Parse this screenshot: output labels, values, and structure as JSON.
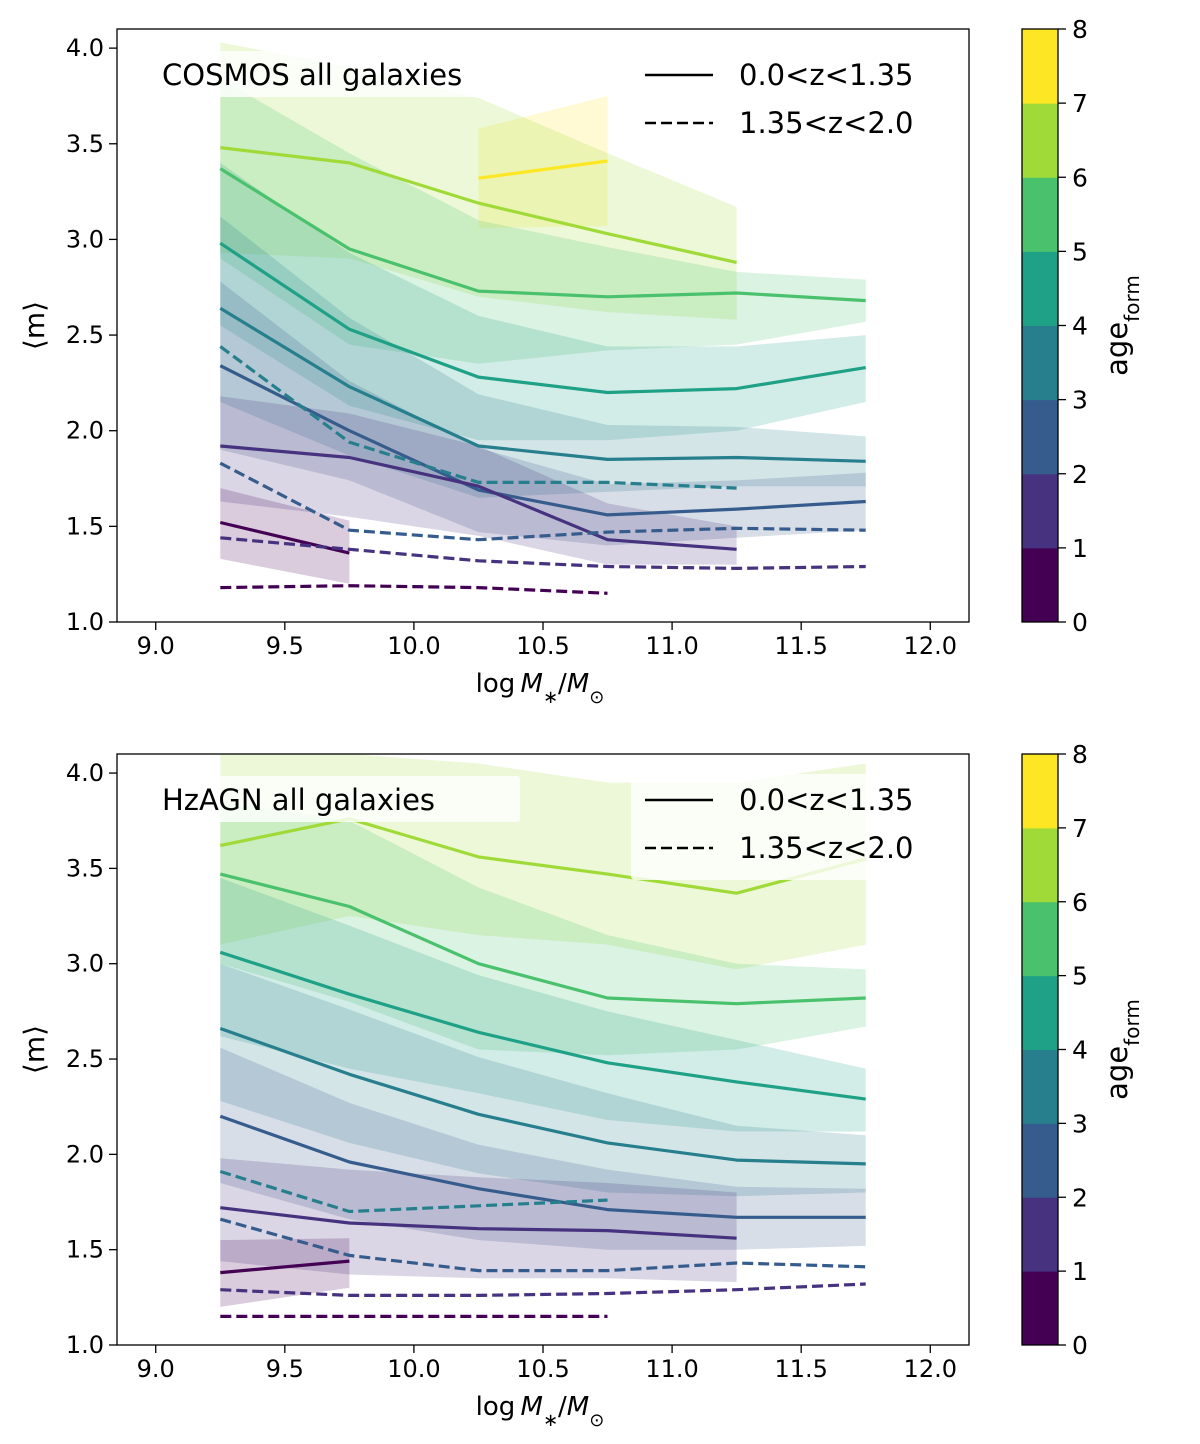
{
  "chart_data": [
    {
      "type": "line",
      "title": "COSMOS all galaxies",
      "xlabel_main": "log",
      "xlabel_italic": "M",
      "xlabel_sub": "∗",
      "xlabel_slash": "/",
      "xlabel_italic2": "M",
      "xlabel_sub2": "⊙",
      "ylabel": "⟨m⟩",
      "xlim": [
        8.85,
        12.15
      ],
      "ylim": [
        1.0,
        4.1
      ],
      "xticks": [
        "9.0",
        "9.5",
        "10.0",
        "10.5",
        "11.0",
        "11.5",
        "12.0"
      ],
      "yticks": [
        "1.0",
        "1.5",
        "2.0",
        "2.5",
        "3.0",
        "3.5",
        "4.0"
      ],
      "legend": {
        "position": "top-right",
        "entries": [
          {
            "label": "0.0<z<1.35",
            "style": "solid"
          },
          {
            "label": "1.35<z<2.0",
            "style": "dashed"
          }
        ]
      },
      "series": [
        {
          "age": 7.5,
          "style": "solid",
          "color": "#fde725",
          "x": [
            10.25,
            10.75
          ],
          "y": [
            3.32,
            3.41
          ],
          "lo": [
            3.06,
            3.07
          ],
          "hi": [
            3.58,
            3.75
          ]
        },
        {
          "age": 6.5,
          "style": "solid",
          "color": "#a0da39",
          "x": [
            9.25,
            9.75,
            10.25,
            10.75,
            11.25
          ],
          "y": [
            3.48,
            3.4,
            3.19,
            3.03,
            2.88
          ],
          "lo": [
            2.93,
            2.9,
            2.7,
            2.62,
            2.58
          ],
          "hi": [
            4.03,
            3.9,
            3.74,
            3.45,
            3.17
          ]
        },
        {
          "age": 5.5,
          "style": "solid",
          "color": "#4ac16d",
          "x": [
            9.25,
            9.75,
            10.25,
            10.75,
            11.25,
            11.75
          ],
          "y": [
            3.37,
            2.95,
            2.73,
            2.7,
            2.72,
            2.68
          ],
          "lo": [
            2.9,
            2.45,
            2.35,
            2.42,
            2.45,
            2.57
          ],
          "hi": [
            3.84,
            3.45,
            3.1,
            2.96,
            2.83,
            2.79
          ]
        },
        {
          "age": 4.5,
          "style": "solid",
          "color": "#1fa187",
          "x": [
            9.25,
            9.75,
            10.25,
            10.75,
            11.25,
            11.75
          ],
          "y": [
            2.98,
            2.53,
            2.28,
            2.2,
            2.22,
            2.33
          ],
          "lo": [
            2.55,
            2.13,
            1.95,
            1.95,
            2.0,
            2.15
          ],
          "hi": [
            3.4,
            2.93,
            2.6,
            2.44,
            2.44,
            2.5
          ]
        },
        {
          "age": 3.5,
          "style": "solid",
          "color": "#277f8e",
          "x": [
            9.25,
            9.75,
            10.25,
            10.75,
            11.25,
            11.75
          ],
          "y": [
            2.64,
            2.23,
            1.92,
            1.85,
            1.86,
            1.84
          ],
          "lo": [
            2.15,
            1.87,
            1.65,
            1.68,
            1.71,
            1.71
          ],
          "hi": [
            3.12,
            2.59,
            2.19,
            2.03,
            2.02,
            1.97
          ]
        },
        {
          "age": 2.5,
          "style": "solid",
          "color": "#365c8d",
          "x": [
            9.25,
            9.75,
            10.25,
            10.75,
            11.25,
            11.75
          ],
          "y": [
            2.34,
            2.0,
            1.69,
            1.56,
            1.59,
            1.63
          ],
          "lo": [
            1.9,
            1.74,
            1.47,
            1.4,
            1.44,
            1.48
          ],
          "hi": [
            2.78,
            2.26,
            1.91,
            1.72,
            1.74,
            1.78
          ]
        },
        {
          "age": 1.5,
          "style": "solid",
          "color": "#46327e",
          "x": [
            9.25,
            9.75,
            10.25,
            10.75,
            11.25
          ],
          "y": [
            1.92,
            1.86,
            1.71,
            1.43,
            1.38
          ],
          "lo": [
            1.63,
            1.55,
            1.45,
            1.3,
            1.3
          ],
          "hi": [
            2.18,
            2.09,
            1.92,
            1.62,
            1.5
          ]
        },
        {
          "age": 0.5,
          "style": "solid",
          "color": "#440154",
          "x": [
            9.25,
            9.75
          ],
          "y": [
            1.52,
            1.36
          ],
          "lo": [
            1.33,
            1.2
          ],
          "hi": [
            1.7,
            1.53
          ]
        },
        {
          "age": 3.5,
          "style": "dashed",
          "color": "#277f8e",
          "x": [
            9.25,
            9.75,
            10.25,
            10.75,
            11.25
          ],
          "y": [
            2.44,
            1.94,
            1.73,
            1.73,
            1.7
          ]
        },
        {
          "age": 2.5,
          "style": "dashed",
          "color": "#365c8d",
          "x": [
            9.25,
            9.75,
            10.25,
            10.75,
            11.25,
            11.75
          ],
          "y": [
            1.83,
            1.48,
            1.43,
            1.47,
            1.49,
            1.48
          ]
        },
        {
          "age": 1.5,
          "style": "dashed",
          "color": "#46327e",
          "x": [
            9.25,
            9.75,
            10.25,
            10.75,
            11.25,
            11.75
          ],
          "y": [
            1.44,
            1.38,
            1.32,
            1.29,
            1.28,
            1.29
          ]
        },
        {
          "age": 0.5,
          "style": "dashed",
          "color": "#440154",
          "x": [
            9.25,
            9.75,
            10.25,
            10.75
          ],
          "y": [
            1.18,
            1.19,
            1.18,
            1.15
          ]
        }
      ]
    },
    {
      "type": "line",
      "title": "HzAGN all galaxies",
      "xlabel_main": "log",
      "xlabel_italic": "M",
      "xlabel_sub": "∗",
      "xlabel_slash": "/",
      "xlabel_italic2": "M",
      "xlabel_sub2": "⊙",
      "ylabel": "⟨m⟩",
      "xlim": [
        8.85,
        12.15
      ],
      "ylim": [
        1.0,
        4.1
      ],
      "xticks": [
        "9.0",
        "9.5",
        "10.0",
        "10.5",
        "11.0",
        "11.5",
        "12.0"
      ],
      "yticks": [
        "1.0",
        "1.5",
        "2.0",
        "2.5",
        "3.0",
        "3.5",
        "4.0"
      ],
      "legend": {
        "position": "top-right",
        "entries": [
          {
            "label": "0.0<z<1.35",
            "style": "solid"
          },
          {
            "label": "1.35<z<2.0",
            "style": "dashed"
          }
        ]
      },
      "series": [
        {
          "age": 6.5,
          "style": "solid",
          "color": "#a0da39",
          "x": [
            9.25,
            9.75,
            10.25,
            10.75,
            11.25,
            11.75
          ],
          "y": [
            3.62,
            3.76,
            3.56,
            3.47,
            3.37,
            3.55
          ],
          "lo": [
            3.1,
            3.25,
            3.15,
            3.1,
            2.97,
            3.1
          ],
          "hi": [
            4.1,
            4.1,
            4.05,
            3.95,
            3.95,
            4.05
          ]
        },
        {
          "age": 5.5,
          "style": "solid",
          "color": "#4ac16d",
          "x": [
            9.25,
            9.75,
            10.25,
            10.75,
            11.25,
            11.75
          ],
          "y": [
            3.47,
            3.3,
            3.0,
            2.82,
            2.79,
            2.82
          ],
          "lo": [
            3.0,
            2.8,
            2.55,
            2.52,
            2.55,
            2.67
          ],
          "hi": [
            3.85,
            3.75,
            3.4,
            3.15,
            3.0,
            2.97
          ]
        },
        {
          "age": 4.5,
          "style": "solid",
          "color": "#1fa187",
          "x": [
            9.25,
            9.75,
            10.25,
            10.75,
            11.25,
            11.75
          ],
          "y": [
            3.06,
            2.84,
            2.64,
            2.48,
            2.38,
            2.29
          ],
          "lo": [
            2.62,
            2.45,
            2.32,
            2.18,
            2.12,
            2.12
          ],
          "hi": [
            3.45,
            3.2,
            2.94,
            2.75,
            2.6,
            2.45
          ]
        },
        {
          "age": 3.5,
          "style": "solid",
          "color": "#277f8e",
          "x": [
            9.25,
            9.75,
            10.25,
            10.75,
            11.25,
            11.75
          ],
          "y": [
            2.66,
            2.42,
            2.21,
            2.06,
            1.97,
            1.95
          ],
          "lo": [
            2.28,
            2.06,
            1.9,
            1.8,
            1.78,
            1.8
          ],
          "hi": [
            3.0,
            2.76,
            2.51,
            2.32,
            2.15,
            2.1
          ]
        },
        {
          "age": 2.5,
          "style": "solid",
          "color": "#365c8d",
          "x": [
            9.25,
            9.75,
            10.25,
            10.75,
            11.25,
            11.75
          ],
          "y": [
            2.2,
            1.96,
            1.82,
            1.71,
            1.67,
            1.67
          ],
          "lo": [
            1.85,
            1.66,
            1.55,
            1.5,
            1.5,
            1.52
          ],
          "hi": [
            2.56,
            2.27,
            2.05,
            1.92,
            1.83,
            1.82
          ]
        },
        {
          "age": 1.5,
          "style": "solid",
          "color": "#46327e",
          "x": [
            9.25,
            9.75,
            10.25,
            10.75,
            11.25
          ],
          "y": [
            1.72,
            1.64,
            1.61,
            1.6,
            1.56
          ],
          "lo": [
            1.44,
            1.37,
            1.35,
            1.35,
            1.33
          ],
          "hi": [
            1.98,
            1.92,
            1.88,
            1.85,
            1.8
          ]
        },
        {
          "age": 0.5,
          "style": "solid",
          "color": "#440154",
          "x": [
            9.25,
            9.75
          ],
          "y": [
            1.38,
            1.44
          ],
          "lo": [
            1.2,
            1.3
          ],
          "hi": [
            1.55,
            1.56
          ]
        },
        {
          "age": 3.5,
          "style": "dashed",
          "color": "#277f8e",
          "x": [
            9.25,
            9.75,
            10.25,
            10.75
          ],
          "y": [
            1.91,
            1.7,
            1.73,
            1.76
          ]
        },
        {
          "age": 2.5,
          "style": "dashed",
          "color": "#365c8d",
          "x": [
            9.25,
            9.75,
            10.25,
            10.75,
            11.25,
            11.75
          ],
          "y": [
            1.66,
            1.47,
            1.39,
            1.39,
            1.43,
            1.41
          ]
        },
        {
          "age": 1.5,
          "style": "dashed",
          "color": "#46327e",
          "x": [
            9.25,
            9.75,
            10.25,
            10.75,
            11.25,
            11.75
          ],
          "y": [
            1.29,
            1.26,
            1.26,
            1.27,
            1.29,
            1.32
          ]
        },
        {
          "age": 0.5,
          "style": "dashed",
          "color": "#440154",
          "x": [
            9.25,
            9.75,
            10.25,
            10.75
          ],
          "y": [
            1.15,
            1.15,
            1.15,
            1.15
          ]
        }
      ]
    }
  ],
  "colorbar": {
    "label_main": "age",
    "label_sub": "form",
    "ticks": [
      "0",
      "1",
      "2",
      "3",
      "4",
      "5",
      "6",
      "7",
      "8"
    ],
    "colors": [
      "#440154",
      "#46327e",
      "#365c8d",
      "#277f8e",
      "#1fa187",
      "#4ac16d",
      "#a0da39",
      "#fde725"
    ]
  }
}
